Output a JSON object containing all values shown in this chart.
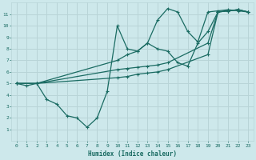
{
  "background_color": "#cde8eb",
  "grid_color": "#b8d4d7",
  "line_color": "#1a6b62",
  "xlabel": "Humidex (Indice chaleur)",
  "xlim": [
    -0.5,
    23.5
  ],
  "ylim": [
    0,
    12
  ],
  "xticks": [
    0,
    1,
    2,
    3,
    4,
    5,
    6,
    7,
    8,
    9,
    10,
    11,
    12,
    13,
    14,
    15,
    16,
    17,
    18,
    19,
    20,
    21,
    22,
    23
  ],
  "yticks": [
    1,
    2,
    3,
    4,
    5,
    6,
    7,
    8,
    9,
    10,
    11
  ],
  "line1_x": [
    0,
    1,
    2,
    3,
    4,
    5,
    6,
    7,
    8,
    9,
    10,
    11,
    12,
    13,
    14,
    15,
    16,
    17,
    18,
    19,
    20,
    21,
    22,
    23
  ],
  "line1_y": [
    5.0,
    4.8,
    5.0,
    3.6,
    3.2,
    2.2,
    2.0,
    1.2,
    2.0,
    4.3,
    10.0,
    8.0,
    7.8,
    8.5,
    10.5,
    11.5,
    11.2,
    9.5,
    8.6,
    11.2,
    11.3,
    11.4,
    11.3,
    11.2
  ],
  "line2_x": [
    0,
    2,
    10,
    11,
    12,
    13,
    14,
    15,
    16,
    17,
    18,
    19,
    20,
    21,
    22,
    23
  ],
  "line2_y": [
    5.0,
    5.0,
    7.0,
    7.5,
    7.8,
    8.5,
    8.0,
    7.8,
    6.8,
    6.5,
    8.5,
    9.5,
    11.2,
    11.3,
    11.4,
    11.2
  ],
  "line3_x": [
    0,
    2,
    10,
    11,
    12,
    13,
    14,
    15,
    19,
    20,
    21,
    22,
    23
  ],
  "line3_y": [
    5.0,
    5.0,
    6.2,
    6.3,
    6.4,
    6.5,
    6.6,
    6.8,
    8.5,
    11.2,
    11.3,
    11.4,
    11.2
  ],
  "line4_x": [
    0,
    2,
    10,
    11,
    12,
    13,
    14,
    15,
    19,
    20,
    21,
    22,
    23
  ],
  "line4_y": [
    5.0,
    5.0,
    5.5,
    5.6,
    5.8,
    5.9,
    6.0,
    6.2,
    7.5,
    11.2,
    11.3,
    11.4,
    11.2
  ]
}
